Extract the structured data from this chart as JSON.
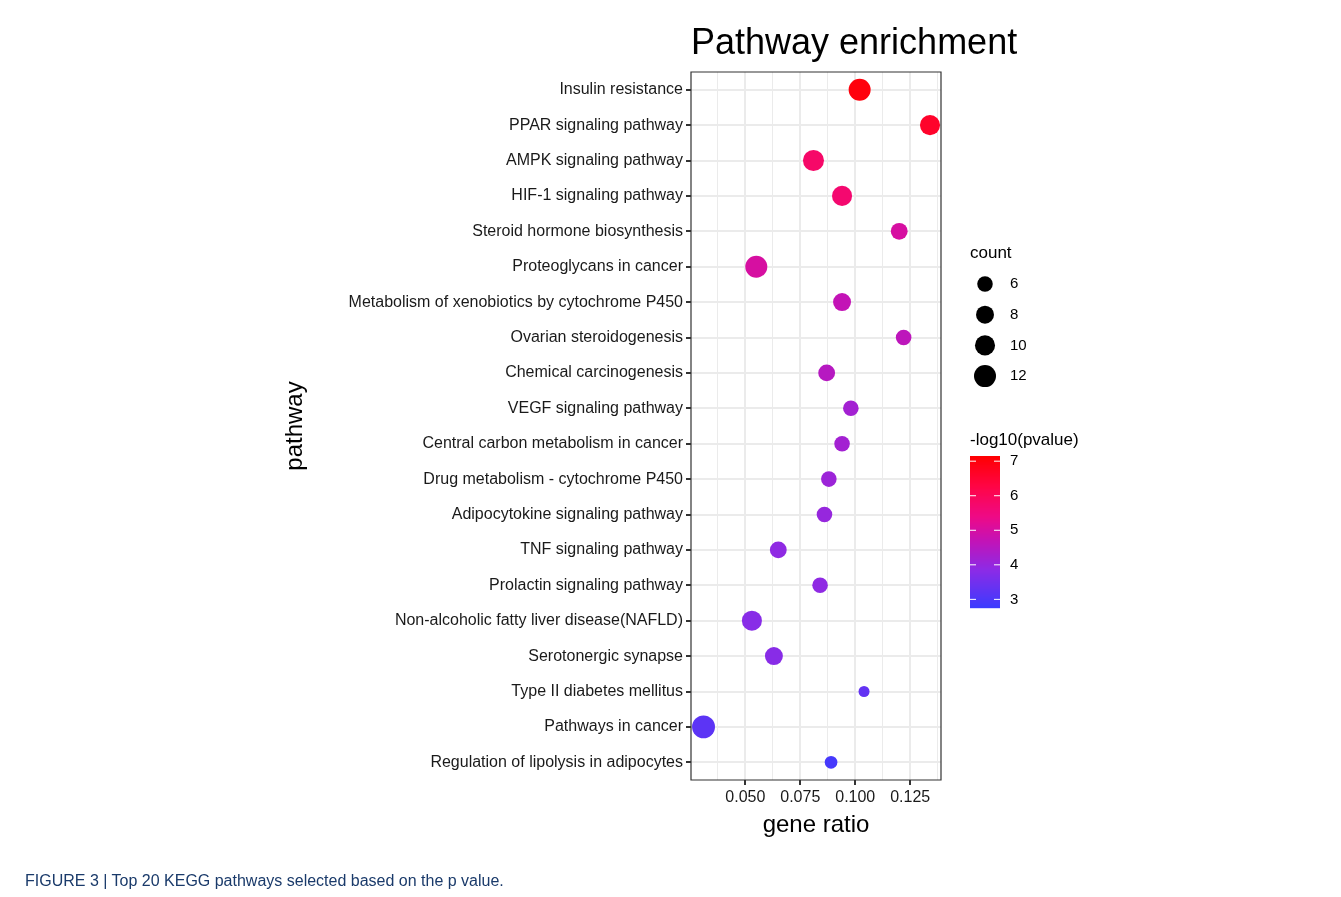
{
  "chart_data": {
    "type": "bubble",
    "title": "Pathway enrichment",
    "xlabel": "gene ratio",
    "ylabel": "pathway",
    "legend_title": "count",
    "clabel": "-log10(pvalue)",
    "categories": [
      "Insulin resistance",
      "PPAR signaling pathway",
      "AMPK signaling pathway",
      "HIF-1 signaling pathway",
      "Steroid hormone biosynthesis",
      "Proteoglycans in cancer",
      "Metabolism of xenobiotics by cytochrome P450",
      "Ovarian steroidogenesis",
      "Chemical carcinogenesis",
      "VEGF signaling pathway",
      "Central carbon metabolism in cancer",
      "Drug metabolism - cytochrome P450",
      "Adipocytokine signaling pathway",
      "TNF signaling pathway",
      "Prolactin signaling pathway",
      "Non-alcoholic fatty liver disease(NAFLD)",
      "Serotonergic synapse",
      "Type II diabetes mellitus",
      "Pathways in cancer",
      "Regulation of lipolysis in adipocytes"
    ],
    "orientation": "horizontal",
    "values": [
      0.102,
      0.134,
      0.081,
      0.094,
      0.12,
      0.055,
      0.094,
      0.122,
      0.087,
      0.098,
      0.094,
      0.088,
      0.086,
      0.065,
      0.084,
      0.053,
      0.063,
      0.104,
      0.031,
      0.089
    ],
    "sizes": [
      12,
      10,
      11,
      10,
      7,
      12,
      8,
      6,
      7,
      6,
      6,
      6,
      6,
      7,
      6,
      10,
      8,
      3,
      13,
      4
    ],
    "cvalues": [
      7.0,
      6.6,
      5.8,
      5.7,
      5.0,
      5.0,
      4.7,
      4.6,
      4.5,
      4.2,
      4.2,
      4.1,
      4.0,
      3.9,
      3.9,
      3.8,
      3.8,
      3.3,
      3.2,
      2.9
    ],
    "size_legend": [
      6,
      8,
      10,
      12
    ],
    "clim": [
      2.75,
      7.15
    ],
    "cticks": [
      3,
      4,
      5,
      6,
      7
    ],
    "xlim": [
      0.0253,
      0.139
    ],
    "xticks": [
      {
        "value": 0.0375,
        "label": null
      },
      {
        "value": 0.05,
        "label": "0.050"
      },
      {
        "value": 0.0625,
        "label": null
      },
      {
        "value": 0.075,
        "label": "0.075"
      },
      {
        "value": 0.0875,
        "label": null
      },
      {
        "value": 0.1,
        "label": "0.100"
      },
      {
        "value": 0.1125,
        "label": null
      },
      {
        "value": 0.125,
        "label": "0.125"
      },
      {
        "value": 0.1375,
        "label": null
      }
    ],
    "grid": true,
    "annotations": [
      "FIGURE 3 | Top 20 KEGG pathways selected based on the p value."
    ]
  }
}
